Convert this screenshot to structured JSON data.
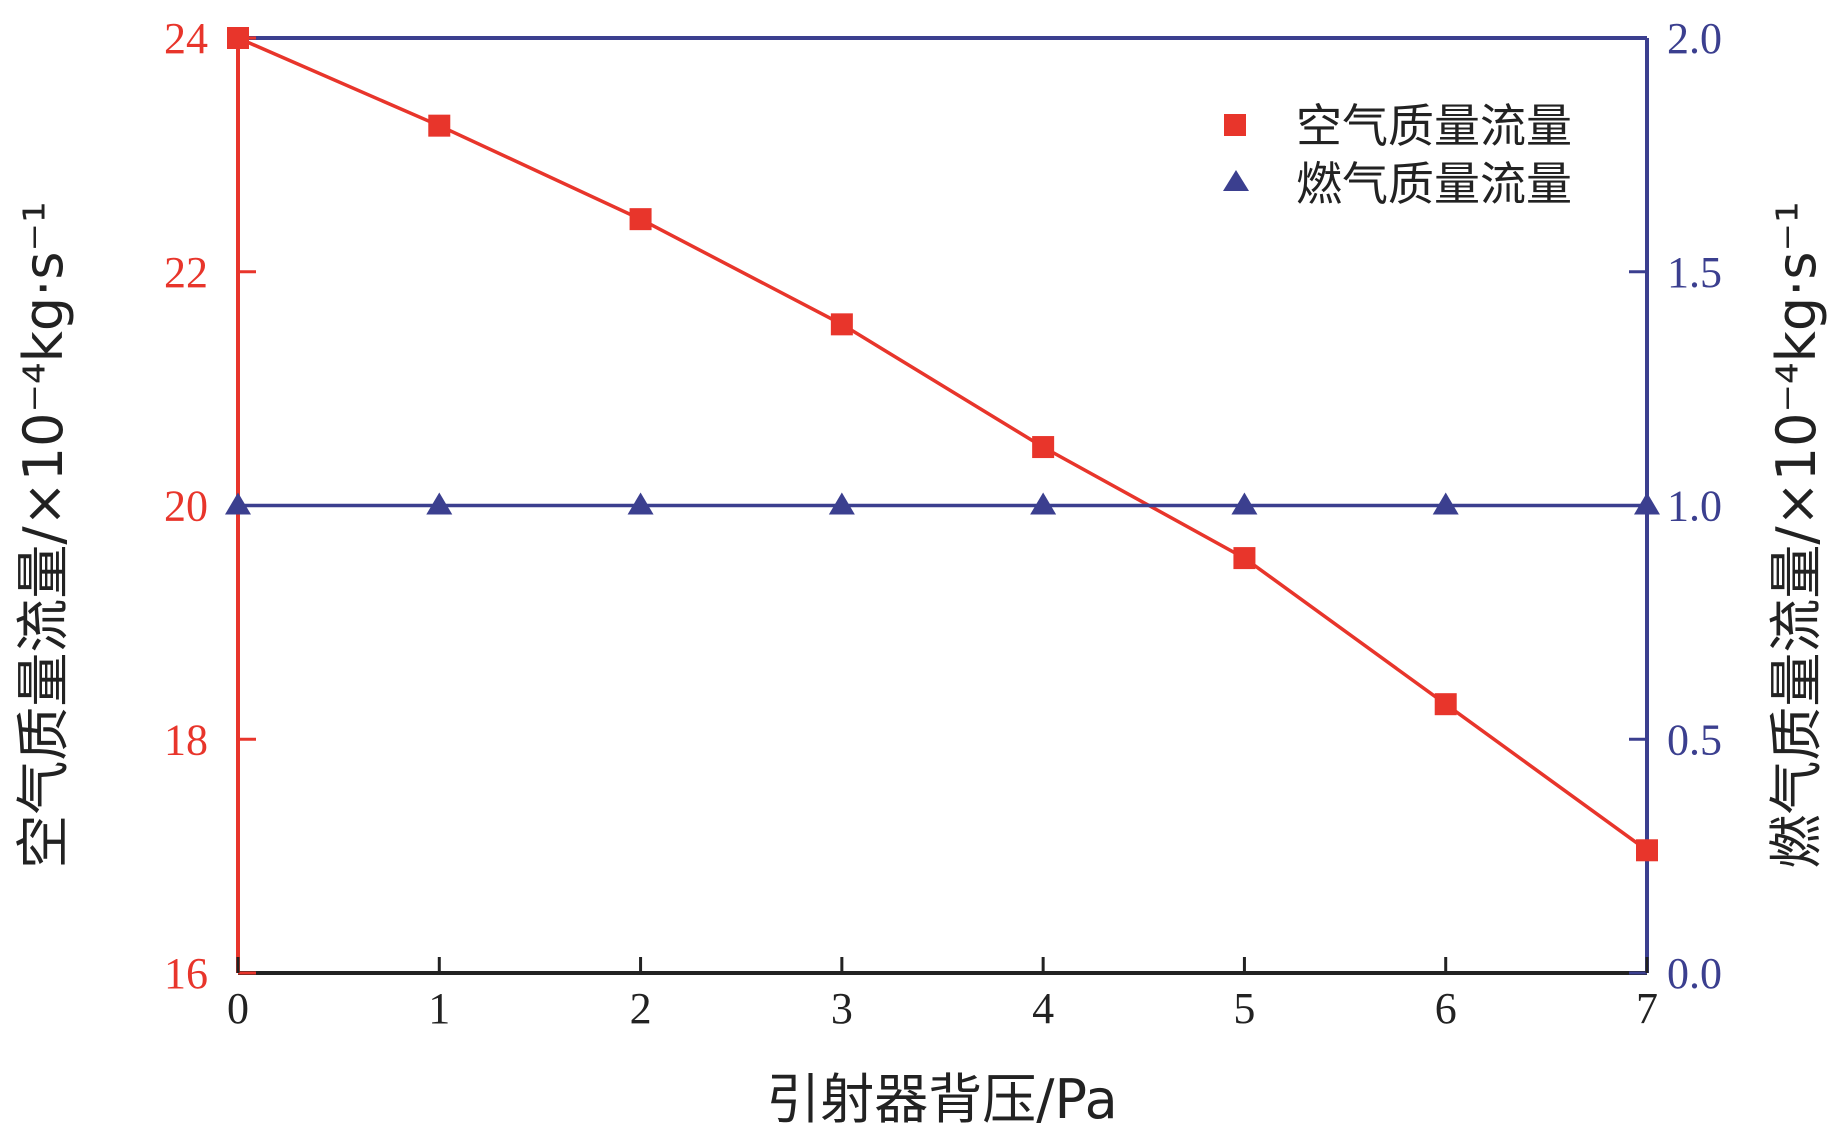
{
  "chart_data": {
    "type": "line",
    "xlabel": "引射器背压/Pa",
    "ylabel_left": "空气质量流量/×10⁻⁴kg·s⁻¹",
    "ylabel_right": "燃气质量流量/×10⁻⁴kg·s⁻¹",
    "x": [
      0,
      1,
      2,
      3,
      4,
      5,
      6,
      7
    ],
    "xlim": [
      0,
      7
    ],
    "xticks": [
      "0",
      "1",
      "2",
      "3",
      "4",
      "5",
      "6",
      "7"
    ],
    "ylim_left": [
      16,
      24
    ],
    "yticks_left": [
      "16",
      "18",
      "20",
      "22",
      "24"
    ],
    "ylim_right": [
      0.0,
      2.0
    ],
    "yticks_right": [
      "0.0",
      "0.5",
      "1.0",
      "1.5",
      "2.0"
    ],
    "grid": false,
    "legend_position": "top-right",
    "series": [
      {
        "name": "空气质量流量",
        "axis": "left",
        "marker": "square",
        "color": "#e8352b",
        "values": [
          24.0,
          23.25,
          22.45,
          21.55,
          20.5,
          19.55,
          18.3,
          17.05
        ]
      },
      {
        "name": "燃气质量流量",
        "axis": "right",
        "marker": "triangle",
        "color": "#3b3f8f",
        "values": [
          1.0,
          1.0,
          1.0,
          1.0,
          1.0,
          1.0,
          1.0,
          1.0
        ]
      }
    ]
  }
}
